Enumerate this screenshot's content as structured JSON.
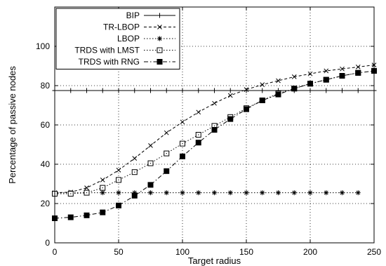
{
  "chart_data": {
    "type": "line",
    "title": "",
    "xlabel": "Target radius",
    "ylabel": "Percentage of passive nodes",
    "xlim": [
      0,
      250
    ],
    "ylim": [
      0,
      120
    ],
    "xticks": [
      0,
      50,
      100,
      150,
      200,
      250
    ],
    "yticks": [
      0,
      20,
      40,
      60,
      80,
      100
    ],
    "grid": true,
    "legend_position": "top-left",
    "series": [
      {
        "name": "BIP",
        "marker": "plus",
        "dash": "solid",
        "x": [
          0,
          12.5,
          25,
          37.5,
          50,
          62.5,
          75,
          87.5,
          100,
          112.5,
          125,
          137.5,
          150,
          162.5,
          175,
          187.5,
          200,
          212.5,
          225,
          237.5,
          250
        ],
        "y": [
          77.5,
          77.5,
          77.5,
          77.5,
          77.5,
          77.5,
          77.5,
          77.5,
          77.5,
          77.5,
          77.5,
          77.5,
          77.5,
          77.5,
          77.5,
          77.5,
          77.5,
          77.5,
          77.5,
          77.5,
          77.5
        ]
      },
      {
        "name": "TR-LBOP",
        "marker": "x",
        "dash": "dashed",
        "x": [
          0,
          12.5,
          25,
          37.5,
          50,
          62.5,
          75,
          87.5,
          100,
          112.5,
          125,
          137.5,
          150,
          162.5,
          175,
          187.5,
          200,
          212.5,
          225,
          237.5,
          250
        ],
        "y": [
          25.5,
          25.8,
          28,
          32,
          37,
          43,
          49.5,
          56,
          61.5,
          66.5,
          71,
          75,
          78,
          80.5,
          82.5,
          84.5,
          86,
          87.5,
          88.5,
          89.5,
          90.5
        ]
      },
      {
        "name": "LBOP",
        "marker": "asterisk",
        "dash": "dotted",
        "x": [
          0,
          12.5,
          25,
          37.5,
          50,
          62.5,
          75,
          87.5,
          100,
          112.5,
          125,
          137.5,
          150,
          162.5,
          175,
          187.5,
          200,
          212.5,
          225,
          237.5
        ],
        "y": [
          25.5,
          25.5,
          25.5,
          25.5,
          25.5,
          25.5,
          25.5,
          25.5,
          25.5,
          25.5,
          25.5,
          25.5,
          25.5,
          25.5,
          25.5,
          25.5,
          25.5,
          25.5,
          25.5,
          25.5
        ]
      },
      {
        "name": "TRDS with LMST",
        "marker": "square-open",
        "dash": "dotted",
        "x": [
          0,
          12.5,
          25,
          37.5,
          50,
          62.5,
          75,
          87.5,
          100,
          112.5,
          125,
          137.5,
          150,
          162.5,
          175,
          187.5,
          200,
          212.5,
          225,
          237.5
        ],
        "y": [
          25,
          25,
          25.5,
          28,
          32,
          36,
          40.5,
          45.5,
          50.5,
          55,
          59.5,
          64,
          68.5,
          72.5,
          76,
          78.5,
          81,
          83,
          85,
          86.5
        ]
      },
      {
        "name": "TRDS with RNG",
        "marker": "square-filled",
        "dash": "dashdot",
        "x": [
          0,
          12.5,
          25,
          37.5,
          50,
          62.5,
          75,
          87.5,
          100,
          112.5,
          125,
          137.5,
          150,
          162.5,
          175,
          187.5,
          200,
          212.5,
          225,
          237.5,
          250
        ],
        "y": [
          12.5,
          13,
          14,
          15.5,
          19,
          24,
          29.5,
          36.5,
          44,
          51,
          57.5,
          63,
          68,
          72.5,
          75.5,
          78.5,
          81,
          83,
          85,
          86.5,
          87.5
        ]
      }
    ]
  }
}
